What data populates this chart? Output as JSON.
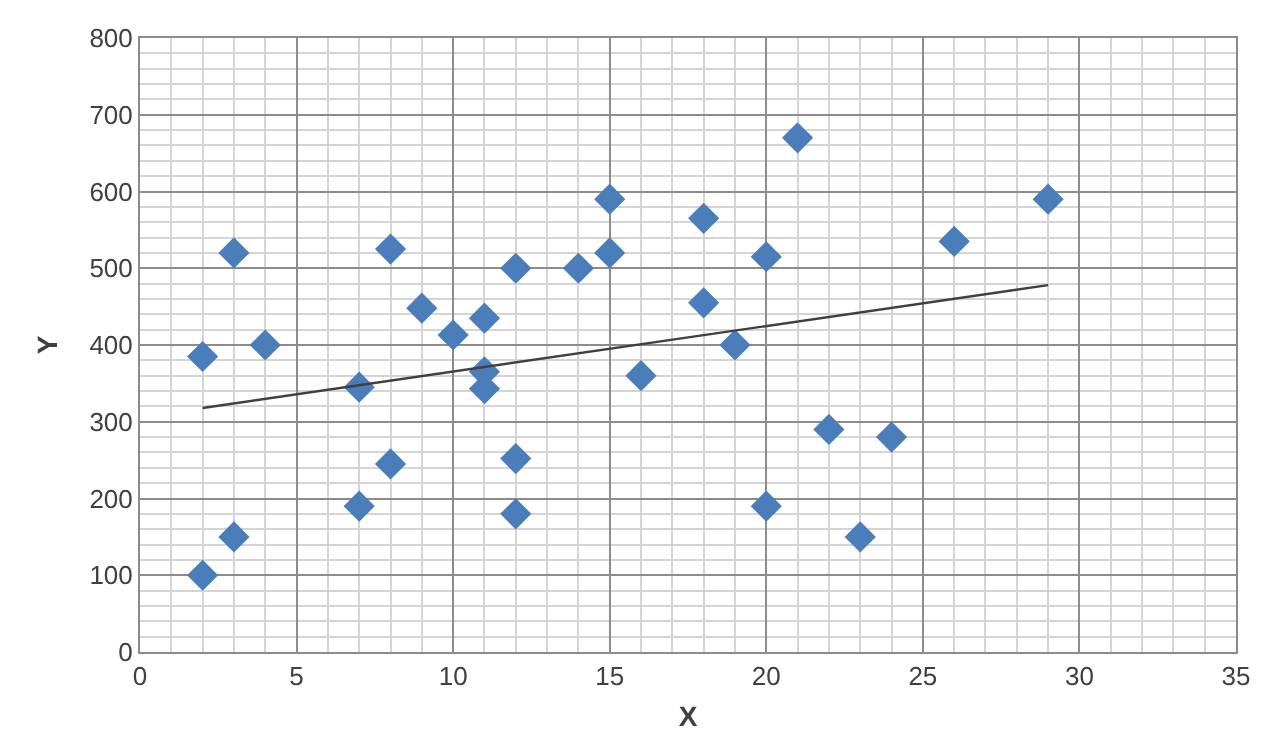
{
  "chart_data": {
    "type": "scatter",
    "xlabel": "X",
    "ylabel": "Y",
    "xlim": [
      0,
      35
    ],
    "xticks": [
      0,
      5,
      10,
      15,
      20,
      25,
      30,
      35
    ],
    "ylim": [
      0,
      800
    ],
    "yticks": [
      0,
      100,
      200,
      300,
      400,
      500,
      600,
      700,
      800
    ],
    "grid": true,
    "legend": false,
    "series": [
      {
        "marker": "diamond",
        "color": "#4a7ebb",
        "x": [
          2,
          2,
          3,
          3,
          4,
          7,
          7,
          8,
          8,
          9,
          10,
          11,
          11,
          11,
          12,
          12,
          12,
          14,
          15,
          15,
          16,
          18,
          18,
          19,
          20,
          20,
          21,
          22,
          23,
          24,
          26,
          29
        ],
        "values": [
          385,
          100,
          520,
          150,
          400,
          345,
          190,
          525,
          245,
          448,
          413,
          435,
          365,
          343,
          500,
          252,
          180,
          500,
          590,
          520,
          360,
          565,
          455,
          400,
          515,
          190,
          670,
          290,
          150,
          280,
          535,
          590
        ]
      },
      {
        "type": "line",
        "marker": "none",
        "color": "#404040",
        "x": [
          2,
          29
        ],
        "values": [
          318,
          478
        ]
      }
    ]
  }
}
